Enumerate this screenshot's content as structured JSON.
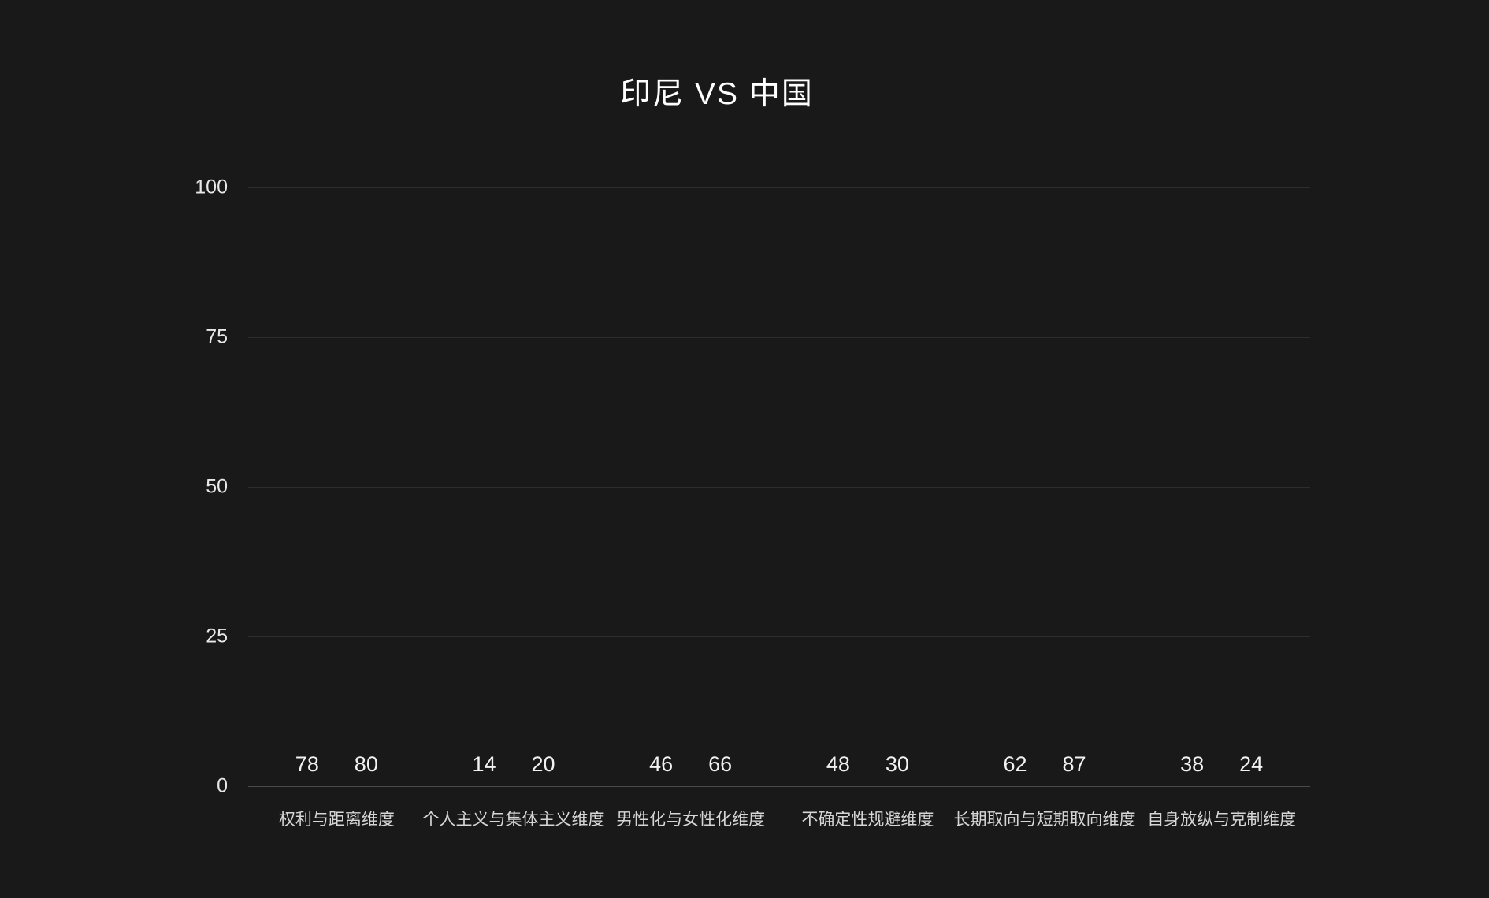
{
  "title": "印尼 VS 中国",
  "colors": {
    "background": "#19191a",
    "title_text": "#ffffff",
    "axis_tick_text": "#e8e8e8",
    "category_text": "#d6d6d6",
    "value_label_text": "#f2f2f2",
    "gridline": "rgba(255,255,255,0.09)",
    "axis_line": "rgba(255,255,255,0.22)"
  },
  "chart_data": {
    "type": "bar",
    "title": "印尼 VS 中国",
    "categories": [
      "权利与距离维度",
      "个人主义与集体主义维度",
      "男性化与女性化维度",
      "不确定性规避维度",
      "长期取向与短期取向维度",
      "自身放纵与克制维度"
    ],
    "series": [
      {
        "name": "印尼",
        "values": [
          78,
          14,
          46,
          48,
          62,
          38
        ],
        "gradient_top": "#a855f5",
        "gradient_bottom": "#5a27ee"
      },
      {
        "name": "中国",
        "values": [
          80,
          20,
          66,
          30,
          87,
          24
        ],
        "gradient_top": "#67d6f7",
        "gradient_bottom": "#4285ee"
      }
    ],
    "xlabel": "",
    "ylabel": "",
    "ylim": [
      0,
      100
    ],
    "yticks": [
      0,
      25,
      50,
      75,
      100
    ],
    "grid": true,
    "legend_position": "none",
    "value_labels_shown": true
  }
}
